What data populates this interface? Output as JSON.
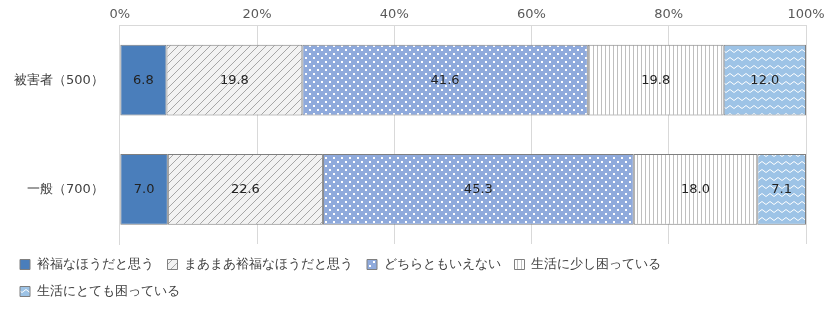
{
  "chart_data": {
    "type": "bar",
    "orientation": "horizontal",
    "stacked": true,
    "data_labels": true,
    "grid": true,
    "legend": "bottom",
    "categories": [
      "被害者（500）",
      "一般（700）"
    ],
    "xlim": [
      0,
      100
    ],
    "xticks": [
      {
        "value": 0,
        "label": "0%"
      },
      {
        "value": 20,
        "label": "20%"
      },
      {
        "value": 40,
        "label": "40%"
      },
      {
        "value": 60,
        "label": "60%"
      },
      {
        "value": 80,
        "label": "80%"
      },
      {
        "value": 100,
        "label": "100%"
      }
    ],
    "series": [
      {
        "name": "裕福なほうだと思う",
        "color": "#4a7ebb",
        "values": [
          6.8,
          7.0
        ],
        "value_labels": [
          "6.8",
          "7.0"
        ]
      },
      {
        "name": "まあまあ裕福なほうだと思う",
        "color": "#a6a6a6",
        "values": [
          19.8,
          22.6
        ],
        "value_labels": [
          "19.8",
          "22.6"
        ]
      },
      {
        "name": "どちらともいえない",
        "color": "#8faadc",
        "values": [
          41.6,
          45.3
        ],
        "value_labels": [
          "41.6",
          "45.3"
        ]
      },
      {
        "name": "生活に少し困っている",
        "color": "#bfbfbf",
        "values": [
          19.8,
          18.0
        ],
        "value_labels": [
          "19.8",
          "18.0"
        ]
      },
      {
        "name": "生活にとても困っている",
        "color": "#9dc3e6",
        "values": [
          12.0,
          7.1
        ],
        "value_labels": [
          "12.0",
          "7.1"
        ]
      }
    ]
  }
}
